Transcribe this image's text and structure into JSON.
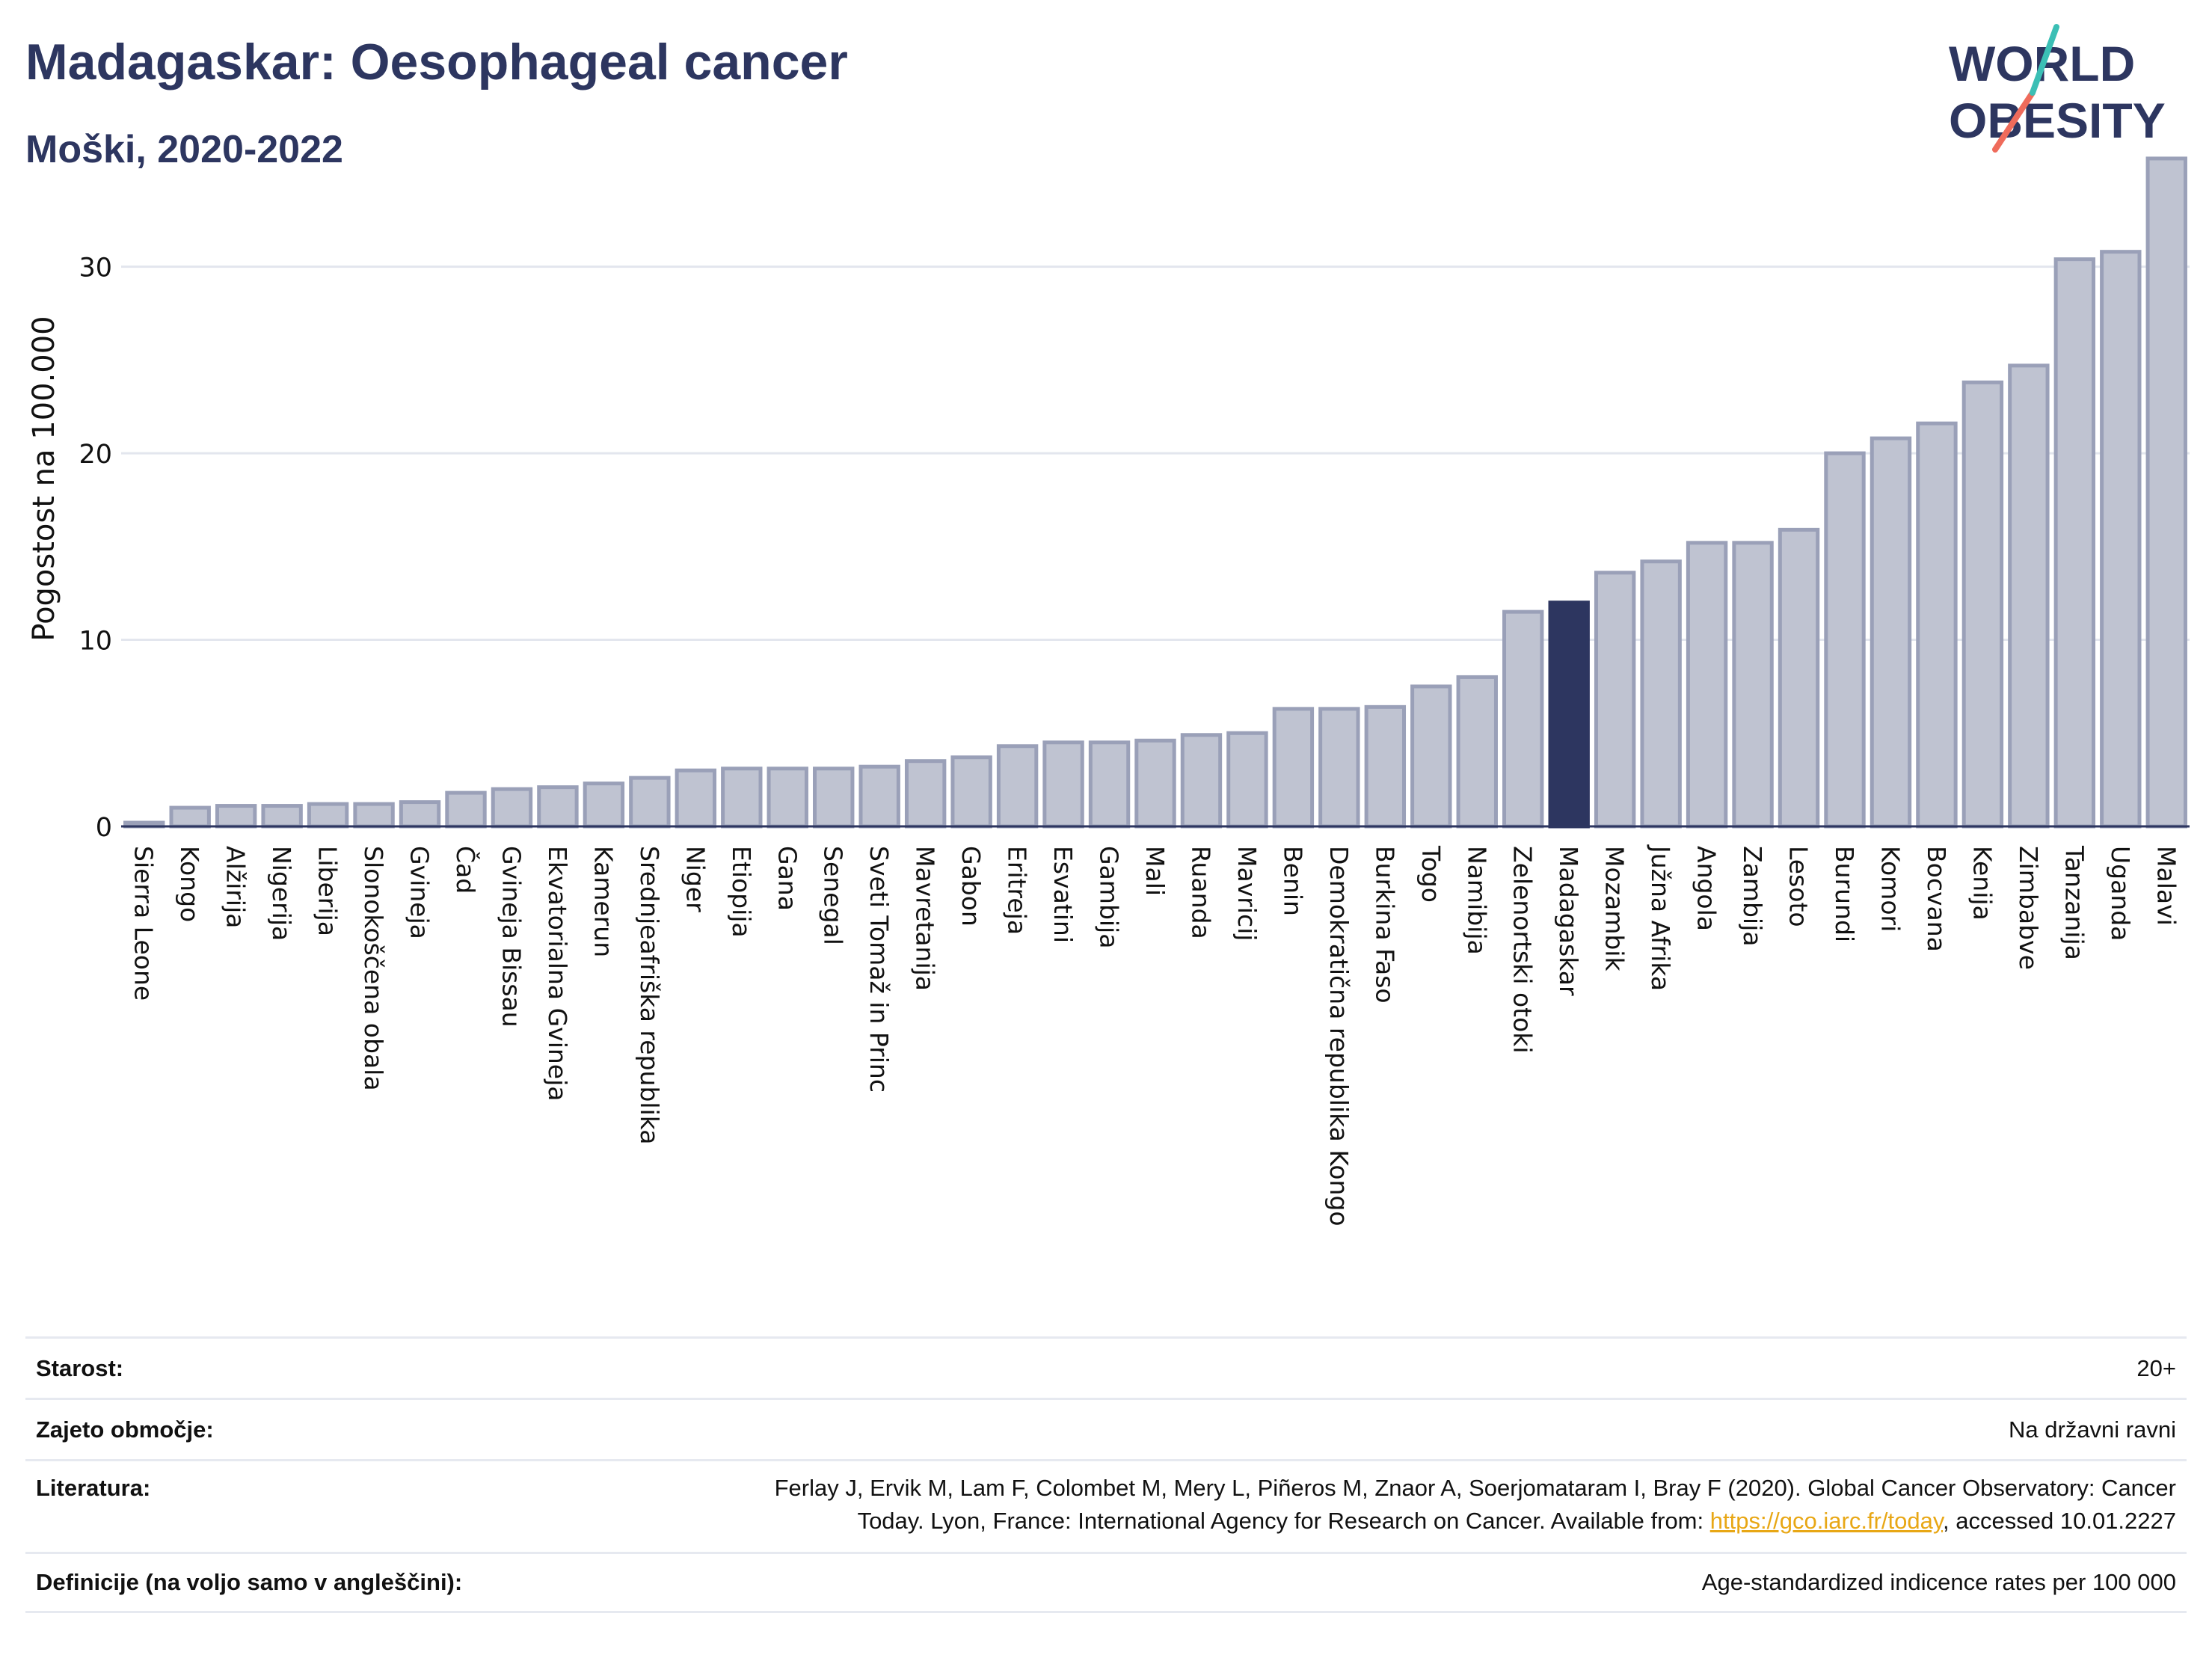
{
  "header": {
    "title": "Madagaskar: Oesophageal cancer",
    "subtitle": "Moški, 2020-2022"
  },
  "logo": {
    "line1": "WORLD",
    "line2": "OBESITY"
  },
  "colors": {
    "bar": "#bfc3d1",
    "bar_stroke": "#9aa0b8",
    "highlight": "#2d3660",
    "title": "#2d3660",
    "grid": "#e3e6ee",
    "axis": "#2d3660",
    "logo_teal": "#3bbfb5",
    "logo_coral": "#ef6b5b",
    "link": "#e8a715"
  },
  "chart_data": {
    "type": "bar",
    "ylabel": "Pogostost na 100.000",
    "ylim": [
      0,
      37
    ],
    "yticks": [
      0,
      10,
      20,
      30
    ],
    "grid": true,
    "highlight": "Madagaskar",
    "categories": [
      "Sierra Leone",
      "Kongo",
      "Alžirija",
      "Nigerija",
      "Liberija",
      "Slonokoščena obala",
      "Gvineja",
      "Čad",
      "Gvineja Bissau",
      "Ekvatorialna Gvineja",
      "Kamerun",
      "Srednjeafriška republika",
      "Niger",
      "Etiopija",
      "Gana",
      "Senegal",
      "Sveti Tomaž in Princ",
      "Mavretanija",
      "Gabon",
      "Eritreja",
      "Esvatini",
      "Gambija",
      "Mali",
      "Ruanda",
      "Mavricij",
      "Benin",
      "Demokratična republika Kongo",
      "Burkina Faso",
      "Togo",
      "Namibija",
      "Zelenortski otoki",
      "Madagaskar",
      "Mozambik",
      "Južna Afrika",
      "Angola",
      "Zambija",
      "Lesoto",
      "Burundi",
      "Komori",
      "Bocvana",
      "Kenija",
      "Zimbabve",
      "Tanzanija",
      "Uganda",
      "Malavi"
    ],
    "values": [
      0.2,
      1.0,
      1.1,
      1.1,
      1.2,
      1.2,
      1.3,
      1.8,
      2.0,
      2.1,
      2.3,
      2.6,
      3.0,
      3.1,
      3.1,
      3.1,
      3.2,
      3.5,
      3.7,
      4.3,
      4.5,
      4.5,
      4.6,
      4.9,
      5.0,
      6.3,
      6.3,
      6.4,
      7.5,
      8.0,
      11.5,
      12.0,
      13.6,
      14.2,
      15.2,
      15.2,
      15.9,
      20.0,
      20.8,
      21.6,
      23.8,
      24.7,
      30.4,
      30.8,
      35.8
    ]
  },
  "info": [
    {
      "label": "Starost:",
      "value": "20+"
    },
    {
      "label": "Zajeto območje:",
      "value": "Na državni ravni"
    },
    {
      "label": "Literatura:",
      "value_line1": "Ferlay J, Ervik M, Lam F, Colombet M, Mery L, Piñeros M, Znaor A, Soerjomataram I, Bray F (2020). Global Cancer Observatory: Cancer",
      "value_line2_pre": "Today. Lyon, France: International Agency for Research on Cancer. Available from: ",
      "link_text": "https://gco.iarc.fr/today",
      "value_line2_post": ", accessed 10.01.2227"
    },
    {
      "label": "Definicije (na voljo samo v angleščini):",
      "value": "Age-standardized indicence rates per 100 000"
    }
  ]
}
